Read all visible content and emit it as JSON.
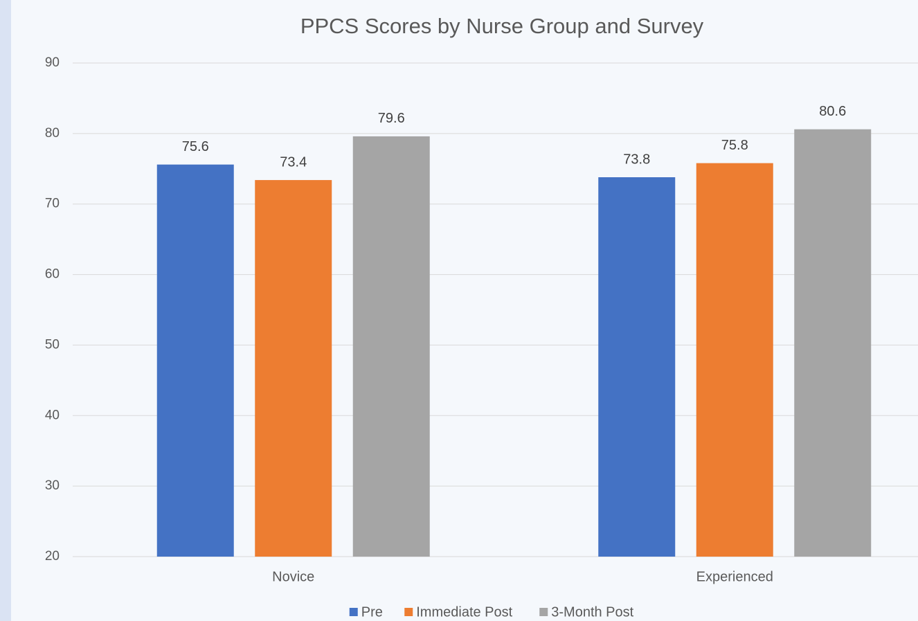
{
  "chart_data": {
    "type": "bar",
    "title": "PPCS Scores by Nurse Group and Survey",
    "categories": [
      "Novice",
      "Experienced"
    ],
    "series": [
      {
        "name": "Pre",
        "color": "#4472c4",
        "values": [
          75.6,
          73.8
        ]
      },
      {
        "name": "Immediate Post",
        "color": "#ed7d31",
        "values": [
          73.4,
          75.8
        ]
      },
      {
        "name": "3-Month Post",
        "color": "#a5a5a5",
        "values": [
          79.6,
          80.6
        ]
      }
    ],
    "ylim": [
      20,
      90
    ],
    "yticks": [
      20,
      30,
      40,
      50,
      60,
      70,
      80,
      90
    ],
    "grid": true,
    "legend": "bottom"
  }
}
